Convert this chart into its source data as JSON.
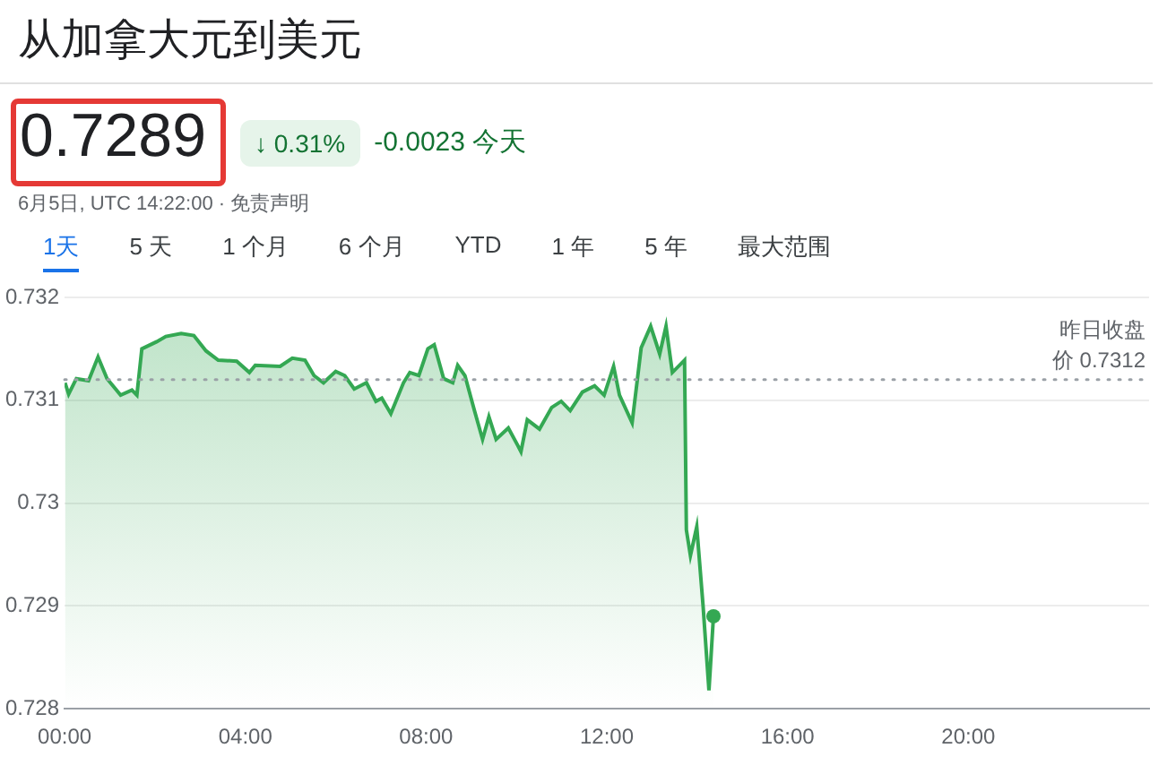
{
  "chart_data": {
    "type": "area",
    "title": "从加拿大元到美元",
    "annotations": [
      "0.7289",
      "↓ 0.31%",
      "-0.0023 今天",
      "6月5日, UTC 14:22:00 · 免责声明",
      "1天",
      "5 天",
      "1 个月",
      "6 个月",
      "YTD",
      "1 年",
      "5 年",
      "最大范围"
    ],
    "series": [
      {
        "color": "#34a853",
        "x": [
          0.01,
          0.09,
          0.26,
          0.53,
          0.74,
          0.94,
          1.24,
          1.49,
          1.6,
          1.71,
          2.04,
          2.24,
          2.58,
          2.86,
          3.13,
          3.4,
          3.81,
          4.09,
          4.22,
          4.77,
          5.04,
          5.32,
          5.52,
          5.73,
          6.0,
          6.2,
          6.41,
          6.68,
          6.89,
          7.02,
          7.22,
          7.5,
          7.64,
          7.84,
          8.04,
          8.18,
          8.39,
          8.59,
          8.7,
          8.86,
          9.07,
          9.25,
          9.39,
          9.55,
          9.82,
          10.03,
          10.1,
          10.24,
          10.51,
          10.78,
          10.99,
          11.19,
          11.46,
          11.73,
          11.94,
          12.15,
          12.28,
          12.56,
          12.76,
          12.97,
          13.17,
          13.31,
          13.45,
          13.72,
          13.76,
          13.85,
          13.99,
          14.13,
          14.26,
          14.36
        ],
        "values": [
          0.73117,
          0.73106,
          0.73121,
          0.73119,
          0.73142,
          0.73121,
          0.73105,
          0.7311,
          0.73105,
          0.7315,
          0.73157,
          0.73162,
          0.73165,
          0.73163,
          0.73148,
          0.73139,
          0.73138,
          0.73127,
          0.73134,
          0.73133,
          0.73141,
          0.73139,
          0.73124,
          0.73117,
          0.73128,
          0.73124,
          0.73111,
          0.73117,
          0.73099,
          0.73102,
          0.73087,
          0.73117,
          0.73127,
          0.73124,
          0.7315,
          0.73154,
          0.73121,
          0.73117,
          0.73134,
          0.73124,
          0.7309,
          0.73062,
          0.73084,
          0.73062,
          0.73073,
          0.73056,
          0.7305,
          0.73081,
          0.73072,
          0.73093,
          0.73099,
          0.7309,
          0.73108,
          0.73114,
          0.73105,
          0.73133,
          0.73105,
          0.73078,
          0.73151,
          0.73172,
          0.73145,
          0.73172,
          0.73127,
          0.73139,
          0.72974,
          0.72949,
          0.72977,
          0.729,
          0.72818,
          0.7289
        ]
      }
    ],
    "xlim": [
      0,
      24
    ],
    "xticks": [
      {
        "value": 0,
        "label": "00:00"
      },
      {
        "value": 4,
        "label": "04:00"
      },
      {
        "value": 8,
        "label": "08:00"
      },
      {
        "value": 12,
        "label": "12:00"
      },
      {
        "value": 16,
        "label": "16:00"
      },
      {
        "value": 20,
        "label": "20:00"
      }
    ],
    "ylim": [
      0.728,
      0.732
    ],
    "yticks": [
      0.728,
      0.729,
      0.73,
      0.731,
      0.732
    ],
    "grid": "y",
    "legend": false,
    "ref_lines": [
      {
        "axis": "y",
        "value": 0.7312,
        "label": "昨日收盘价 0.7312",
        "color": "#9aa0a6",
        "line_style": "dotted"
      }
    ]
  }
}
